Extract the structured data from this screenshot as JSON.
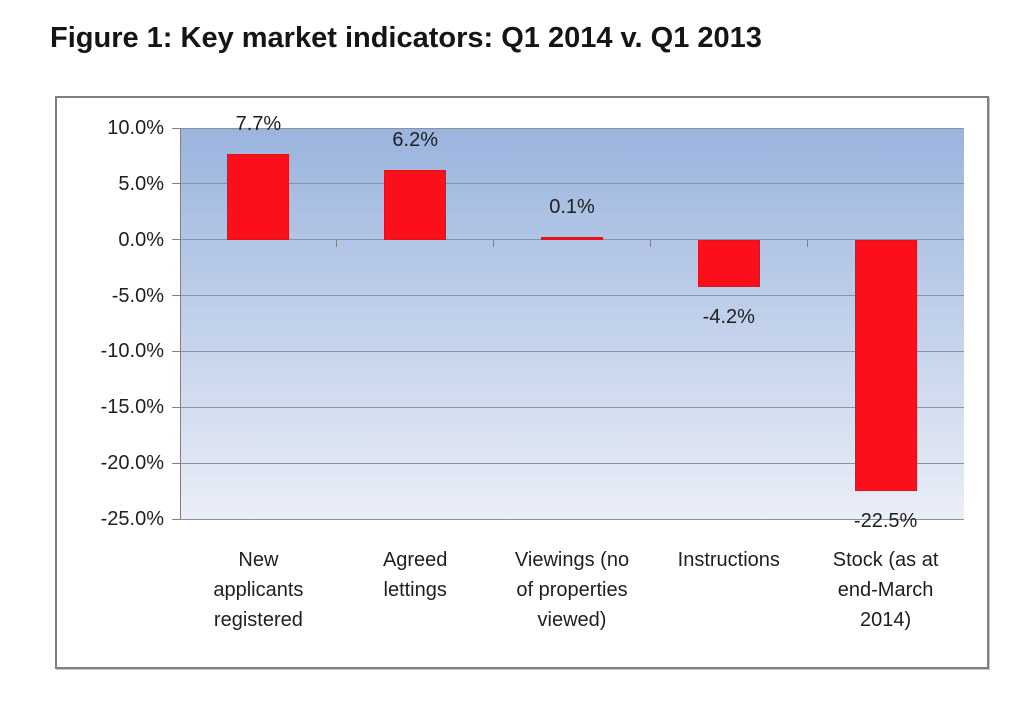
{
  "page": {
    "background_color": "#ffffff",
    "title": "Figure 1: Key market indicators: Q1 2014 v. Q1 2013"
  },
  "chart_data": {
    "type": "bar",
    "title": "Figure 1: Key market indicators: Q1 2014 v. Q1 2013",
    "categories": [
      "New applicants registered",
      "Agreed lettings",
      "Viewings (no of properties viewed)",
      "Instructions",
      "Stock (as at end-March 2014)"
    ],
    "category_lines": [
      [
        "New",
        "applicants",
        "registered"
      ],
      [
        "Agreed",
        "lettings"
      ],
      [
        "Viewings (no",
        "of properties",
        "viewed)"
      ],
      [
        "Instructions"
      ],
      [
        "Stock (as at",
        "end-March",
        "2014)"
      ]
    ],
    "values": [
      7.7,
      6.2,
      0.1,
      -4.2,
      -22.5
    ],
    "data_labels": [
      "7.7%",
      "6.2%",
      "0.1%",
      "-4.2%",
      "-22.5%"
    ],
    "y_tick_labels": [
      "10.0%",
      "5.0%",
      "0.0%",
      "-5.0%",
      "-10.0%",
      "-15.0%",
      "-20.0%",
      "-25.0%"
    ],
    "y_tick_values": [
      10,
      5,
      0,
      -5,
      -10,
      -15,
      -20,
      -25
    ],
    "ylim": [
      -25,
      10
    ],
    "xlabel": "",
    "ylabel": "",
    "grid": true,
    "legend_position": "none",
    "colors": {
      "bar_fill": "#fa0f1b",
      "bar_edge": "#e0121c",
      "plot_bg_top": "#9ab4de",
      "plot_bg_bottom": "#eaeef7",
      "gridline": "#8a939f",
      "axis": "#808080",
      "frame_border": "#7f7f7f",
      "text": "#1f1f1f"
    }
  }
}
